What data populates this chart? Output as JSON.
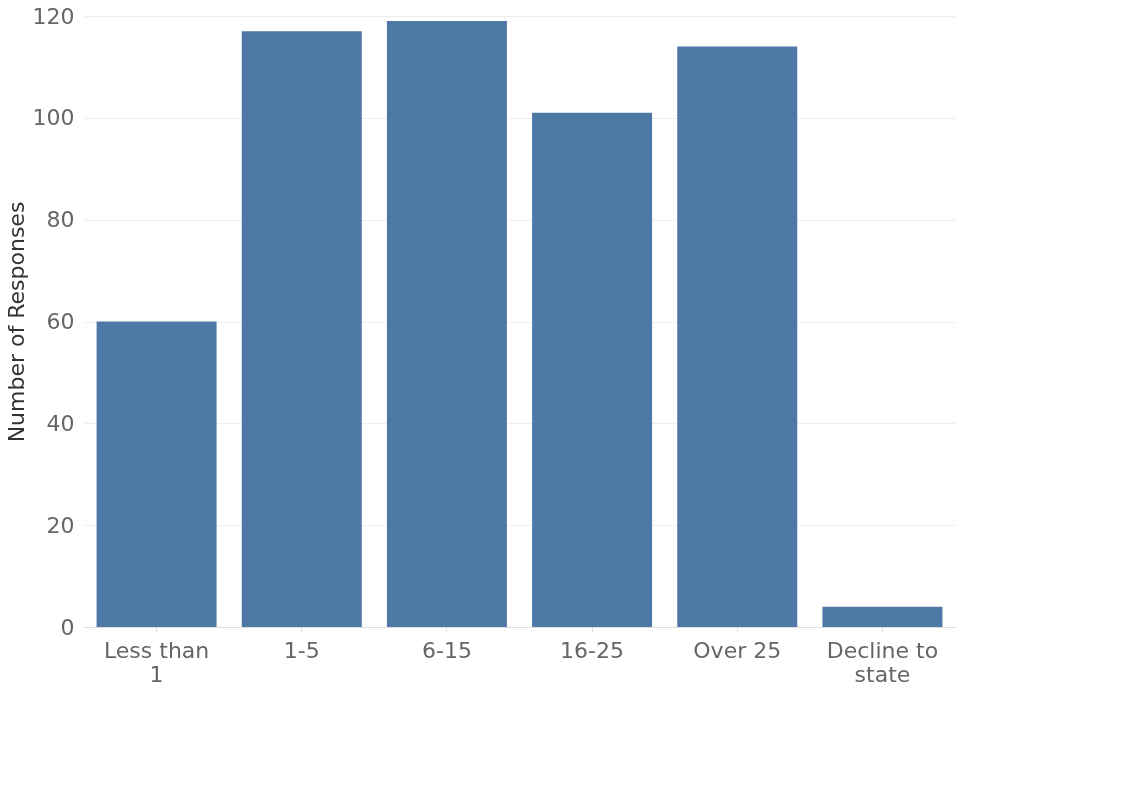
{
  "chart_data": {
    "type": "bar",
    "ylabel": "Number of Responses",
    "categories": [
      "Less than 1",
      "1-5",
      "6-15",
      "16-25",
      "Over 25",
      "Decline to state"
    ],
    "values": [
      60,
      117,
      119,
      101,
      114,
      4
    ],
    "color": "#4e79a7",
    "ylim": [
      0,
      120
    ],
    "yticks": [
      0,
      20,
      40,
      60,
      80,
      100,
      120
    ],
    "grid": "y"
  }
}
